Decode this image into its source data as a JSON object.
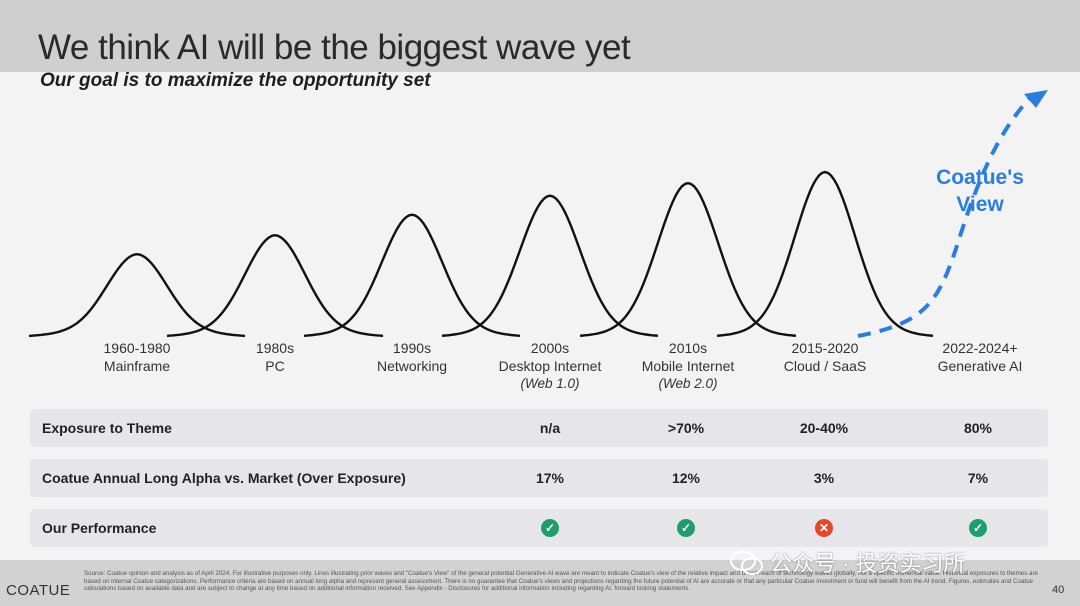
{
  "header": {
    "title": "We think AI will be the biggest wave yet",
    "subtitle": "Our goal is to maximize the opportunity set"
  },
  "waves": [
    {
      "period": "1960-1980",
      "name": "Mainframe",
      "sub": "",
      "relative_peak": 0.48
    },
    {
      "period": "1980s",
      "name": "PC",
      "sub": "",
      "relative_peak": 0.6
    },
    {
      "period": "1990s",
      "name": "Networking",
      "sub": "",
      "relative_peak": 0.73
    },
    {
      "period": "2000s",
      "name": "Desktop Internet",
      "sub": "(Web 1.0)",
      "relative_peak": 0.85
    },
    {
      "period": "2010s",
      "name": "Mobile Internet",
      "sub": "(Web 2.0)",
      "relative_peak": 0.93
    },
    {
      "period": "2015-2020",
      "name": "Cloud / SaaS",
      "sub": "",
      "relative_peak": 1.0
    },
    {
      "period": "2022-2024+",
      "name": "Generative AI",
      "sub": "",
      "relative_peak": null
    }
  ],
  "view_label": {
    "line1": "Coatue's",
    "line2": "View"
  },
  "colors": {
    "accent": "#2a7de1",
    "good": "#1e9e6e",
    "bad": "#e8452f"
  },
  "table": {
    "rows": [
      {
        "label": "Exposure to Theme",
        "values": [
          "",
          "",
          "",
          "n/a",
          ">70%",
          "20-40%",
          "80%"
        ]
      },
      {
        "label": "Coatue Annual Long Alpha vs. Market (Over Exposure)",
        "values": [
          "",
          "",
          "",
          "17%",
          "12%",
          "3%",
          "7%"
        ]
      },
      {
        "label": "Our Performance",
        "status": [
          null,
          null,
          null,
          "good",
          "good",
          "bad",
          "good"
        ],
        "icons": {
          "good": "check-icon",
          "bad": "cross-icon"
        }
      }
    ]
  },
  "footer": {
    "logo": "COATUE",
    "disclaimer": "Source: Coatue opinion and analysis as of April 2024. For illustrative purposes only. Lines illustrating prior waves and \"Coatue's View\" of the general potential Generative AI wave are meant to indicate Coatue's view of the relative impact and broad reach of technology waves globally, not a specific numerical value. Historical exposures to themes are based on internal Coatue categorizations. Performance criteria are based on annual long alpha and represent general assessment. There is no guarantee that Coatue's views and projections regarding the future potential of AI are accurate or that any particular Coatue investment or fund will benefit from the AI trend. Figures, estimates and Coatue calculations based on available data and are subject to change at any time based on additional information received. See Appendix - Disclosures for additional information including regarding AI, forward looking statements.",
    "page_number": "40"
  },
  "watermark": "公众号 · 投资实习所"
}
